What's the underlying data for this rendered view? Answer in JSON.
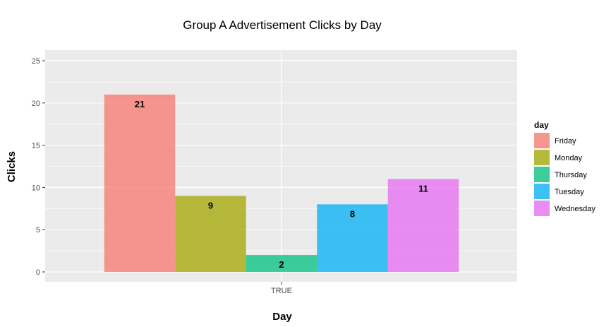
{
  "chart_data": {
    "type": "bar",
    "title": "Group A Advertisement Clicks by Day",
    "xlabel": "Day",
    "ylabel": "Clicks",
    "categories": [
      "TRUE"
    ],
    "series": [
      {
        "name": "Friday",
        "values": [
          21
        ],
        "color": "#F8766D"
      },
      {
        "name": "Monday",
        "values": [
          9
        ],
        "color": "#A3A500"
      },
      {
        "name": "Thursday",
        "values": [
          2
        ],
        "color": "#00BF7D"
      },
      {
        "name": "Tuesday",
        "values": [
          8
        ],
        "color": "#00B0F6"
      },
      {
        "name": "Wednesday",
        "values": [
          11
        ],
        "color": "#E76BF3"
      }
    ],
    "ylim": [
      0,
      25
    ],
    "yticks": [
      "0",
      "5",
      "10",
      "15",
      "20",
      "25"
    ],
    "grid": true,
    "legend": {
      "title": "day",
      "position": "right"
    },
    "panel_background": "#EBEBEB",
    "bar_opacity": 0.75
  }
}
